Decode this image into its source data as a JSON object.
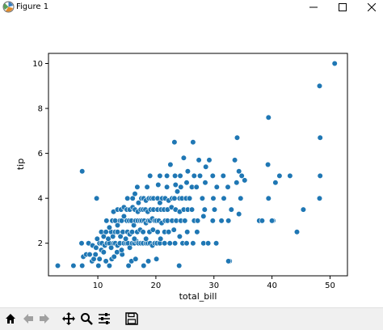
{
  "window": {
    "title": "Figure 1",
    "min_icon": "minimize-icon",
    "max_icon": "maximize-icon",
    "close_icon": "close-icon"
  },
  "toolbar": {
    "buttons": [
      "home-icon",
      "back-arrow-icon",
      "forward-arrow-icon",
      "pan-move-icon",
      "zoom-magnifier-icon",
      "configure-subplots-icon",
      "save-floppy-icon"
    ]
  },
  "chart_data": {
    "type": "scatter",
    "xlabel": "total_bill",
    "ylabel": "tip",
    "xlim": [
      1.5,
      53
    ],
    "ylim": [
      0.55,
      10.45
    ],
    "xticks": [
      10,
      20,
      30,
      40,
      50
    ],
    "yticks": [
      2,
      4,
      6,
      8,
      10
    ],
    "grid": false,
    "marker_color": "#1f77b4",
    "points": [
      [
        3.1,
        1.0
      ],
      [
        5.8,
        1.0
      ],
      [
        7.3,
        1.0
      ],
      [
        7.5,
        1.4
      ],
      [
        8.0,
        1.5
      ],
      [
        8.6,
        1.5
      ],
      [
        9.0,
        1.2
      ],
      [
        9.3,
        1.3
      ],
      [
        9.6,
        1.5
      ],
      [
        10.1,
        1.0
      ],
      [
        10.3,
        1.3
      ],
      [
        10.6,
        1.7
      ],
      [
        11.0,
        1.6
      ],
      [
        11.4,
        1.2
      ],
      [
        12.0,
        1.0
      ],
      [
        12.4,
        1.3
      ],
      [
        12.8,
        1.4
      ],
      [
        13.3,
        1.6
      ],
      [
        14.2,
        1.5
      ],
      [
        15.3,
        1.0
      ],
      [
        15.8,
        1.2
      ],
      [
        16.5,
        1.3
      ],
      [
        17.9,
        1.0
      ],
      [
        18.7,
        1.2
      ],
      [
        20.1,
        1.3
      ],
      [
        24.0,
        1.0
      ],
      [
        32.7,
        1.2
      ],
      [
        7.2,
        2.0
      ],
      [
        8.4,
        2.0
      ],
      [
        9.1,
        1.9
      ],
      [
        9.7,
        1.8
      ],
      [
        10.3,
        2.0
      ],
      [
        10.7,
        2.0
      ],
      [
        11.2,
        1.9
      ],
      [
        11.6,
        2.0
      ],
      [
        12.0,
        2.0
      ],
      [
        12.3,
        1.8
      ],
      [
        12.7,
        2.0
      ],
      [
        13.0,
        2.0
      ],
      [
        13.4,
        1.9
      ],
      [
        13.8,
        2.0
      ],
      [
        14.1,
        1.7
      ],
      [
        14.5,
        2.0
      ],
      [
        14.9,
        2.0
      ],
      [
        15.2,
        2.0
      ],
      [
        15.5,
        1.8
      ],
      [
        15.9,
        2.0
      ],
      [
        16.3,
        2.0
      ],
      [
        16.6,
        2.1
      ],
      [
        17.0,
        2.0
      ],
      [
        17.4,
        2.0
      ],
      [
        17.8,
        2.0
      ],
      [
        18.3,
        2.0
      ],
      [
        18.6,
        2.0
      ],
      [
        19.0,
        2.0
      ],
      [
        19.4,
        1.9
      ],
      [
        19.8,
        2.0
      ],
      [
        20.2,
        2.0
      ],
      [
        20.7,
        2.0
      ],
      [
        21.5,
        2.0
      ],
      [
        22.4,
        2.0
      ],
      [
        23.3,
        2.0
      ],
      [
        24.6,
        2.0
      ],
      [
        25.3,
        2.0
      ],
      [
        26.4,
        2.0
      ],
      [
        28.2,
        2.0
      ],
      [
        29.0,
        2.0
      ],
      [
        30.4,
        2.0
      ],
      [
        9.9,
        2.2
      ],
      [
        10.6,
        2.5
      ],
      [
        11.0,
        2.3
      ],
      [
        11.4,
        2.5
      ],
      [
        11.8,
        2.2
      ],
      [
        12.3,
        2.5
      ],
      [
        12.6,
        2.3
      ],
      [
        13.0,
        2.5
      ],
      [
        13.4,
        2.5
      ],
      [
        13.9,
        2.3
      ],
      [
        14.3,
        2.5
      ],
      [
        14.8,
        2.2
      ],
      [
        15.1,
        2.5
      ],
      [
        15.5,
        2.4
      ],
      [
        15.9,
        2.5
      ],
      [
        16.3,
        2.2
      ],
      [
        16.8,
        2.5
      ],
      [
        17.3,
        2.6
      ],
      [
        17.8,
        2.5
      ],
      [
        18.3,
        2.2
      ],
      [
        18.9,
        2.5
      ],
      [
        19.5,
        2.6
      ],
      [
        20.3,
        2.5
      ],
      [
        20.8,
        2.2
      ],
      [
        21.5,
        2.5
      ],
      [
        22.2,
        2.5
      ],
      [
        23.1,
        2.6
      ],
      [
        24.1,
        2.3
      ],
      [
        25.4,
        2.5
      ],
      [
        27.1,
        2.5
      ],
      [
        11.5,
        3.0
      ],
      [
        12.0,
        2.7
      ],
      [
        12.5,
        3.0
      ],
      [
        13.0,
        3.0
      ],
      [
        13.4,
        2.8
      ],
      [
        13.8,
        3.0
      ],
      [
        14.1,
        3.0
      ],
      [
        14.5,
        3.2
      ],
      [
        15.0,
        3.0
      ],
      [
        15.4,
        3.0
      ],
      [
        15.8,
        3.0
      ],
      [
        16.2,
        2.8
      ],
      [
        16.5,
        3.0
      ],
      [
        16.9,
        3.0
      ],
      [
        17.3,
        3.0
      ],
      [
        17.6,
        3.0
      ],
      [
        18.0,
        3.0
      ],
      [
        18.3,
        2.9
      ],
      [
        18.7,
        3.0
      ],
      [
        19.0,
        3.0
      ],
      [
        19.4,
        3.1
      ],
      [
        19.8,
        3.0
      ],
      [
        20.1,
        3.0
      ],
      [
        20.5,
        3.0
      ],
      [
        21.0,
        2.9
      ],
      [
        21.6,
        3.0
      ],
      [
        22.0,
        3.0
      ],
      [
        22.8,
        3.0
      ],
      [
        23.5,
        3.0
      ],
      [
        24.3,
        3.0
      ],
      [
        25.0,
        3.0
      ],
      [
        26.6,
        3.0
      ],
      [
        27.2,
        3.0
      ],
      [
        28.2,
        3.2
      ],
      [
        29.8,
        3.0
      ],
      [
        31.3,
        3.0
      ],
      [
        32.5,
        3.0
      ],
      [
        34.3,
        3.3
      ],
      [
        37.8,
        3.0
      ],
      [
        38.3,
        3.0
      ],
      [
        40.2,
        3.0
      ],
      [
        12.7,
        3.4
      ],
      [
        13.4,
        3.5
      ],
      [
        14.0,
        3.5
      ],
      [
        14.5,
        3.6
      ],
      [
        15.0,
        3.5
      ],
      [
        15.5,
        3.5
      ],
      [
        16.0,
        3.6
      ],
      [
        16.4,
        3.5
      ],
      [
        16.9,
        3.4
      ],
      [
        17.4,
        3.5
      ],
      [
        17.8,
        3.5
      ],
      [
        18.2,
        3.5
      ],
      [
        18.6,
        3.4
      ],
      [
        19.1,
        3.5
      ],
      [
        19.6,
        3.5
      ],
      [
        20.3,
        3.5
      ],
      [
        20.9,
        3.5
      ],
      [
        21.4,
        3.5
      ],
      [
        22.0,
        3.5
      ],
      [
        22.7,
        3.6
      ],
      [
        23.4,
        3.5
      ],
      [
        24.1,
        3.4
      ],
      [
        24.8,
        3.5
      ],
      [
        25.5,
        3.5
      ],
      [
        26.2,
        3.5
      ],
      [
        28.4,
        3.5
      ],
      [
        30.1,
        3.5
      ],
      [
        33.0,
        3.5
      ],
      [
        45.4,
        3.5
      ],
      [
        9.8,
        4.0
      ],
      [
        15.1,
        4.0
      ],
      [
        16.0,
        4.0
      ],
      [
        16.4,
        4.2
      ],
      [
        17.0,
        3.8
      ],
      [
        17.5,
        4.0
      ],
      [
        17.9,
        4.0
      ],
      [
        18.3,
        3.9
      ],
      [
        18.8,
        4.0
      ],
      [
        19.2,
        4.0
      ],
      [
        19.6,
        4.0
      ],
      [
        20.3,
        4.0
      ],
      [
        20.7,
        3.8
      ],
      [
        21.1,
        4.0
      ],
      [
        21.6,
        4.0
      ],
      [
        22.2,
        3.9
      ],
      [
        22.8,
        4.0
      ],
      [
        23.2,
        4.0
      ],
      [
        23.7,
        4.3
      ],
      [
        24.1,
        4.0
      ],
      [
        24.5,
        4.0
      ],
      [
        25.2,
        4.0
      ],
      [
        25.8,
        4.0
      ],
      [
        28.0,
        4.0
      ],
      [
        29.9,
        4.0
      ],
      [
        31.7,
        4.0
      ],
      [
        34.6,
        4.0
      ],
      [
        39.4,
        4.0
      ],
      [
        48.2,
        4.0
      ],
      [
        16.8,
        4.5
      ],
      [
        18.5,
        4.5
      ],
      [
        20.4,
        4.6
      ],
      [
        21.9,
        4.5
      ],
      [
        23.4,
        4.6
      ],
      [
        24.3,
        4.5
      ],
      [
        25.3,
        4.7
      ],
      [
        26.2,
        4.5
      ],
      [
        27.0,
        4.5
      ],
      [
        28.5,
        4.7
      ],
      [
        30.5,
        4.5
      ],
      [
        32.4,
        4.5
      ],
      [
        33.9,
        4.7
      ],
      [
        35.3,
        4.8
      ],
      [
        40.6,
        4.7
      ],
      [
        44.3,
        2.5
      ],
      [
        48.3,
        5.0
      ],
      [
        7.3,
        5.2
      ],
      [
        19.0,
        5.0
      ],
      [
        20.7,
        5.0
      ],
      [
        21.9,
        5.0
      ],
      [
        23.3,
        5.0
      ],
      [
        24.2,
        5.0
      ],
      [
        25.5,
        5.2
      ],
      [
        26.6,
        5.0
      ],
      [
        27.6,
        5.0
      ],
      [
        29.8,
        5.0
      ],
      [
        31.6,
        5.0
      ],
      [
        34.3,
        5.2
      ],
      [
        34.8,
        5.0
      ],
      [
        41.3,
        5.0
      ],
      [
        43.1,
        5.0
      ],
      [
        22.5,
        5.5
      ],
      [
        24.8,
        5.8
      ],
      [
        27.4,
        5.7
      ],
      [
        28.6,
        5.4
      ],
      [
        29.2,
        5.7
      ],
      [
        33.6,
        5.7
      ],
      [
        39.3,
        5.5
      ],
      [
        23.2,
        6.5
      ],
      [
        26.4,
        6.5
      ],
      [
        34.0,
        6.7
      ],
      [
        39.4,
        7.6
      ],
      [
        48.3,
        6.7
      ],
      [
        48.2,
        9.0
      ],
      [
        50.8,
        10.0
      ],
      [
        40.0,
        3.0
      ],
      [
        32.5,
        1.2
      ]
    ]
  }
}
